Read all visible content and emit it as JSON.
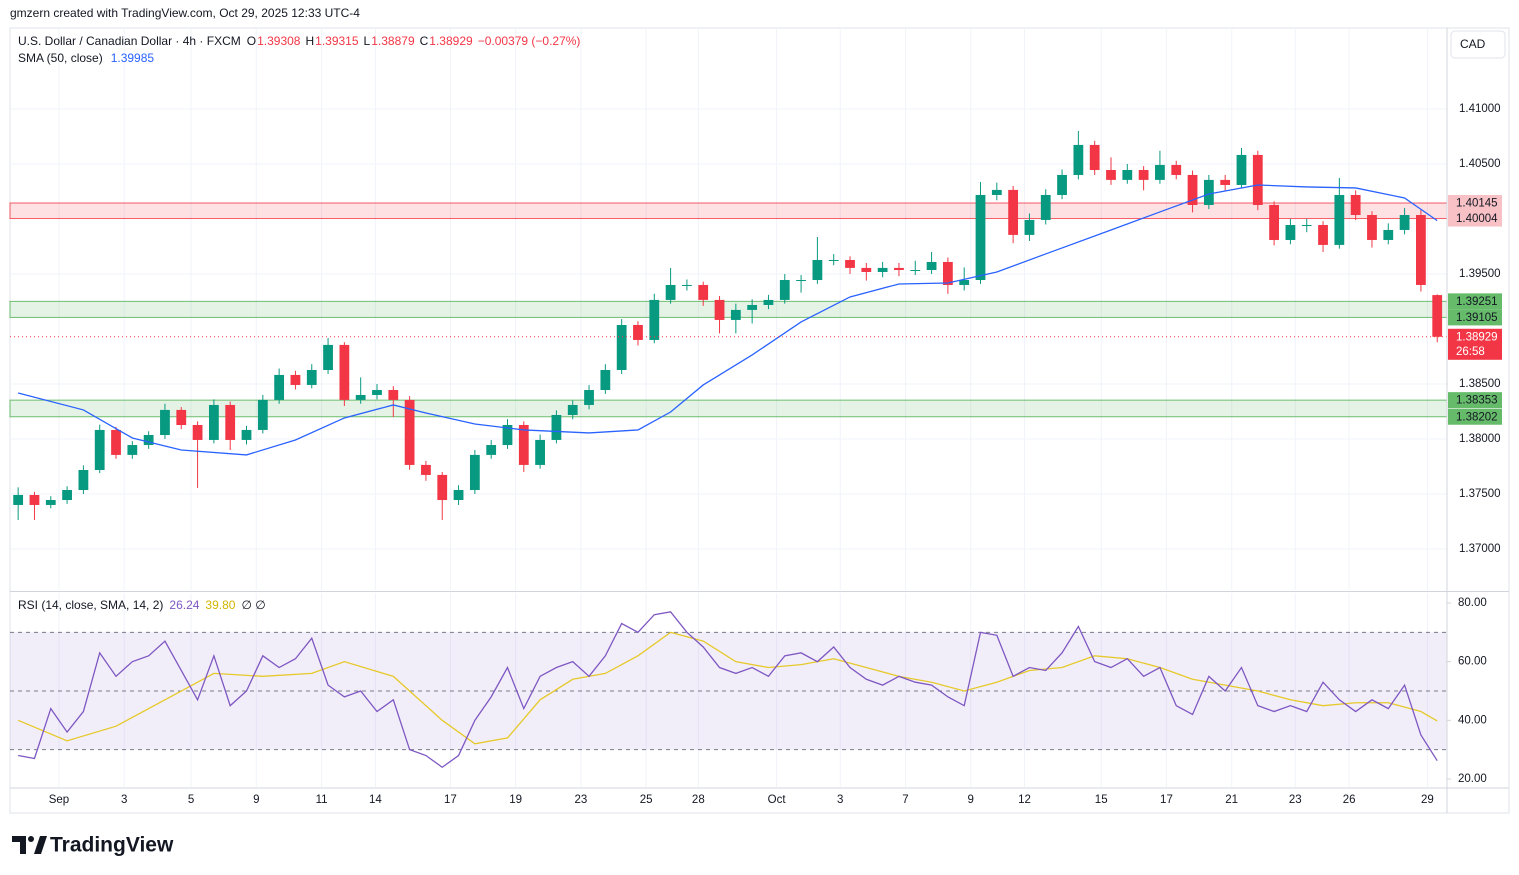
{
  "header": {
    "attribution": "gmzern created with TradingView.com, Oct 29, 2025 12:33 UTC-4"
  },
  "chart_data": [
    {
      "type": "candlestick",
      "title": "U.S. Dollar / Canadian Dollar · 4h · FXCM",
      "ohlc_labels": [
        "O",
        "H",
        "L",
        "C"
      ],
      "change": "−0.00379 (−0.27%)",
      "currency": "CAD",
      "countdown": "26:58",
      "up_color": "#089981",
      "down_color": "#f23645",
      "grid": true,
      "xlim": [
        -0.5,
        87.6
      ],
      "ylim": [
        1.36627,
        1.41736
      ],
      "yticks": [
        {
          "value": 1.37,
          "label": "1.37000"
        },
        {
          "value": 1.375,
          "label": "1.37500"
        },
        {
          "value": 1.38,
          "label": "1.38000"
        },
        {
          "value": 1.385,
          "label": "1.38500"
        },
        {
          "value": 1.395,
          "label": "1.39500"
        },
        {
          "value": 1.405,
          "label": "1.40500"
        },
        {
          "value": 1.41,
          "label": "1.41000"
        }
      ],
      "xticks": [
        {
          "value": 2.5,
          "label": "Sep"
        },
        {
          "value": 6.5,
          "label": "3"
        },
        {
          "value": 10.6,
          "label": "5"
        },
        {
          "value": 14.6,
          "label": "9"
        },
        {
          "value": 18.6,
          "label": "11"
        },
        {
          "value": 21.9,
          "label": "14"
        },
        {
          "value": 26.5,
          "label": "17"
        },
        {
          "value": 30.5,
          "label": "19"
        },
        {
          "value": 34.5,
          "label": "23"
        },
        {
          "value": 38.5,
          "label": "25"
        },
        {
          "value": 41.7,
          "label": "28"
        },
        {
          "value": 46.5,
          "label": "Oct"
        },
        {
          "value": 50.4,
          "label": "3"
        },
        {
          "value": 54.4,
          "label": "7"
        },
        {
          "value": 58.4,
          "label": "9"
        },
        {
          "value": 61.7,
          "label": "12"
        },
        {
          "value": 66.4,
          "label": "15"
        },
        {
          "value": 70.4,
          "label": "17"
        },
        {
          "value": 74.4,
          "label": "21"
        },
        {
          "value": 78.3,
          "label": "23"
        },
        {
          "value": 81.6,
          "label": "26"
        },
        {
          "value": 86.4,
          "label": "29"
        }
      ],
      "candles": [
        [
          1.374,
          1.3756,
          1.37264,
          1.37491
        ],
        [
          1.37491,
          1.3752,
          1.37264,
          1.374
        ],
        [
          1.374,
          1.3748,
          1.3737,
          1.37445
        ],
        [
          1.37445,
          1.3757,
          1.3741,
          1.37536
        ],
        [
          1.37536,
          1.3776,
          1.375,
          1.37718
        ],
        [
          1.37718,
          1.3813,
          1.3769,
          1.38082
        ],
        [
          1.38082,
          1.3811,
          1.3782,
          1.37855
        ],
        [
          1.37855,
          1.3798,
          1.3782,
          1.37945
        ],
        [
          1.37945,
          1.3807,
          1.3791,
          1.38036
        ],
        [
          1.38036,
          1.3832,
          1.38,
          1.38264
        ],
        [
          1.38264,
          1.3829,
          1.3809,
          1.38127
        ],
        [
          1.38127,
          1.3816,
          1.37555,
          1.37991
        ],
        [
          1.37991,
          1.3836,
          1.3796,
          1.38309
        ],
        [
          1.38309,
          1.3834,
          1.379,
          1.37991
        ],
        [
          1.37991,
          1.3812,
          1.3795,
          1.38082
        ],
        [
          1.38082,
          1.384,
          1.3805,
          1.38355
        ],
        [
          1.38355,
          1.3864,
          1.3832,
          1.38582
        ],
        [
          1.38582,
          1.3862,
          1.3845,
          1.38491
        ],
        [
          1.38491,
          1.3868,
          1.3846,
          1.38627
        ],
        [
          1.38627,
          1.38918,
          1.3859,
          1.38855
        ],
        [
          1.38855,
          1.3888,
          1.383,
          1.38355
        ],
        [
          1.38355,
          1.3856,
          1.3832,
          1.384
        ],
        [
          1.384,
          1.385,
          1.3836,
          1.38445
        ],
        [
          1.38445,
          1.3848,
          1.382,
          1.38355
        ],
        [
          1.38355,
          1.3839,
          1.3772,
          1.37764
        ],
        [
          1.37764,
          1.378,
          1.3762,
          1.37673
        ],
        [
          1.37673,
          1.377,
          1.37264,
          1.37445
        ],
        [
          1.37445,
          1.3758,
          1.374,
          1.37536
        ],
        [
          1.37536,
          1.379,
          1.375,
          1.37855
        ],
        [
          1.37855,
          1.3799,
          1.3782,
          1.37945
        ],
        [
          1.37945,
          1.3818,
          1.3791,
          1.38127
        ],
        [
          1.38127,
          1.3816,
          1.377,
          1.37764
        ],
        [
          1.37764,
          1.3804,
          1.3773,
          1.37991
        ],
        [
          1.37991,
          1.3826,
          1.3796,
          1.38218
        ],
        [
          1.38218,
          1.3835,
          1.3818,
          1.38309
        ],
        [
          1.38309,
          1.3849,
          1.3827,
          1.38445
        ],
        [
          1.38445,
          1.3868,
          1.3841,
          1.38627
        ],
        [
          1.38627,
          1.3909,
          1.3859,
          1.39036
        ],
        [
          1.39036,
          1.3907,
          1.3885,
          1.389
        ],
        [
          1.389,
          1.3932,
          1.3887,
          1.39264
        ],
        [
          1.39264,
          1.39555,
          1.3923,
          1.394
        ],
        [
          1.394,
          1.3945,
          1.3935,
          1.394
        ],
        [
          1.394,
          1.3943,
          1.3921,
          1.39264
        ],
        [
          1.39264,
          1.393,
          1.3896,
          1.39082
        ],
        [
          1.39082,
          1.3923,
          1.3896,
          1.39173
        ],
        [
          1.39173,
          1.3927,
          1.3905,
          1.39218
        ],
        [
          1.39218,
          1.3931,
          1.3918,
          1.39264
        ],
        [
          1.39264,
          1.395,
          1.3923,
          1.39445
        ],
        [
          1.39445,
          1.3949,
          1.3933,
          1.39445
        ],
        [
          1.39445,
          1.39836,
          1.3941,
          1.39627
        ],
        [
          1.39627,
          1.3968,
          1.3958,
          1.39627
        ],
        [
          1.39627,
          1.3966,
          1.395,
          1.39555
        ],
        [
          1.39555,
          1.396,
          1.3944,
          1.39518
        ],
        [
          1.39518,
          1.3961,
          1.3947,
          1.39555
        ],
        [
          1.39555,
          1.396,
          1.3948,
          1.39536
        ],
        [
          1.39536,
          1.3962,
          1.3949,
          1.39536
        ],
        [
          1.39536,
          1.397,
          1.395,
          1.39609
        ],
        [
          1.39609,
          1.3965,
          1.3932,
          1.394
        ],
        [
          1.394,
          1.3956,
          1.3935,
          1.39445
        ],
        [
          1.39445,
          1.40336,
          1.3941,
          1.40218
        ],
        [
          1.40218,
          1.4033,
          1.4017,
          1.40264
        ],
        [
          1.40264,
          1.403,
          1.3978,
          1.39855
        ],
        [
          1.39855,
          1.4005,
          1.398,
          1.39991
        ],
        [
          1.39991,
          1.4027,
          1.3995,
          1.40218
        ],
        [
          1.40218,
          1.4045,
          1.4018,
          1.404
        ],
        [
          1.404,
          1.408,
          1.4036,
          1.40673
        ],
        [
          1.40673,
          1.4071,
          1.404,
          1.40445
        ],
        [
          1.40445,
          1.4056,
          1.4031,
          1.40355
        ],
        [
          1.40355,
          1.405,
          1.4032,
          1.40445
        ],
        [
          1.40445,
          1.4048,
          1.4026,
          1.40355
        ],
        [
          1.40355,
          1.4062,
          1.4032,
          1.40491
        ],
        [
          1.40491,
          1.4053,
          1.4036,
          1.404
        ],
        [
          1.404,
          1.4044,
          1.4006,
          1.40127
        ],
        [
          1.40127,
          1.404,
          1.4009,
          1.40355
        ],
        [
          1.40355,
          1.404,
          1.4025,
          1.40309
        ],
        [
          1.40309,
          1.40645,
          1.4028,
          1.40582
        ],
        [
          1.40582,
          1.4062,
          1.4008,
          1.40127
        ],
        [
          1.40127,
          1.4016,
          1.3976,
          1.39809
        ],
        [
          1.39809,
          1.4,
          1.3977,
          1.39945
        ],
        [
          1.39945,
          1.4,
          1.3988,
          1.39945
        ],
        [
          1.39945,
          1.3998,
          1.397,
          1.39764
        ],
        [
          1.39764,
          1.40373,
          1.3973,
          1.40218
        ],
        [
          1.40218,
          1.4026,
          1.3999,
          1.40036
        ],
        [
          1.40036,
          1.4007,
          1.3974,
          1.39809
        ],
        [
          1.39809,
          1.3996,
          1.3977,
          1.399
        ],
        [
          1.399,
          1.401,
          1.3986,
          1.40036
        ],
        [
          1.40036,
          1.4008,
          1.3934,
          1.394
        ],
        [
          1.39308,
          1.39315,
          1.38879,
          1.38929
        ]
      ],
      "sma": {
        "name": "SMA (50, close)",
        "color": "#2962ff",
        "x": [
          0,
          4,
          7,
          10,
          14,
          17,
          20,
          23,
          25,
          28,
          31,
          35,
          38,
          40,
          42,
          45,
          48,
          51,
          54,
          57,
          60,
          63,
          67,
          70,
          73,
          76,
          79,
          82,
          85,
          87
        ],
        "values": [
          1.38418,
          1.38264,
          1.38009,
          1.379,
          1.37855,
          1.37991,
          1.38191,
          1.38309,
          1.38236,
          1.38136,
          1.38082,
          1.38055,
          1.38082,
          1.38245,
          1.38491,
          1.38764,
          1.39064,
          1.39291,
          1.39409,
          1.39418,
          1.39518,
          1.39682,
          1.399,
          1.40064,
          1.40227,
          1.40309,
          1.40291,
          1.40282,
          1.40191,
          1.39985
        ]
      },
      "zones": [
        {
          "from": 1.40004,
          "to": 1.40145,
          "color": "#f23645",
          "label_color": "#f7c1c5"
        },
        {
          "from": 1.39105,
          "to": 1.39251,
          "color": "#4caf50",
          "label_color": "#66bb6a"
        },
        {
          "from": 1.38202,
          "to": 1.38353,
          "color": "#4caf50",
          "label_color": "#66bb6a"
        }
      ]
    },
    {
      "type": "rsi",
      "title": "RSI (14, close, SMA, 14, 2)",
      "extras": "∅ ∅",
      "ylim": [
        17.27,
        83.41
      ],
      "yticks": [
        {
          "value": 20,
          "label": "20.00"
        },
        {
          "value": 40,
          "label": "40.00"
        },
        {
          "value": 60,
          "label": "60.00"
        },
        {
          "value": 80,
          "label": "80.00"
        }
      ],
      "bands": [
        30,
        70
      ],
      "midline": 50,
      "band_color": "#7e57c2",
      "rsi": {
        "color": "#7e57c2",
        "values": [
          28,
          27,
          44,
          36,
          43,
          63,
          55,
          60,
          62,
          67,
          57,
          47,
          62,
          45,
          50,
          62,
          58,
          61,
          68,
          52,
          48,
          50,
          43,
          47,
          30,
          28,
          24,
          28,
          40,
          48,
          58,
          44,
          55,
          58,
          60,
          55,
          62,
          73,
          70,
          76,
          77,
          70,
          65,
          58,
          56,
          58,
          55,
          62,
          63,
          60,
          65,
          58,
          54,
          52,
          55,
          53,
          52,
          48,
          45,
          70,
          69,
          55,
          58,
          57,
          63,
          72,
          60,
          58,
          61,
          55,
          58,
          45,
          42,
          55,
          50,
          58,
          45,
          43,
          45,
          43,
          53,
          47,
          43,
          47,
          44,
          52,
          35,
          26.24
        ]
      },
      "rsi_sma": {
        "color": "#e6c92a",
        "x": [
          0,
          3,
          6,
          9,
          12,
          15,
          18,
          20,
          23,
          26,
          28,
          30,
          32,
          34,
          36,
          38,
          40,
          42,
          44,
          46,
          48,
          50,
          52,
          54,
          56,
          58,
          60,
          62,
          64,
          66,
          68,
          70,
          72,
          74,
          76,
          78,
          80,
          82,
          84,
          86,
          87
        ],
        "values": [
          40,
          33,
          38,
          47,
          56,
          55,
          56,
          60,
          55,
          40,
          32,
          34,
          47,
          54,
          56,
          62,
          70,
          67,
          60,
          58,
          59,
          61,
          58,
          55,
          53,
          50,
          53,
          57,
          58,
          62,
          61,
          58,
          54,
          52,
          50,
          47,
          45,
          46,
          46,
          43,
          39.8
        ],
        "last_label": "39.80"
      }
    }
  ],
  "footer": {
    "brand": "TradingView"
  }
}
